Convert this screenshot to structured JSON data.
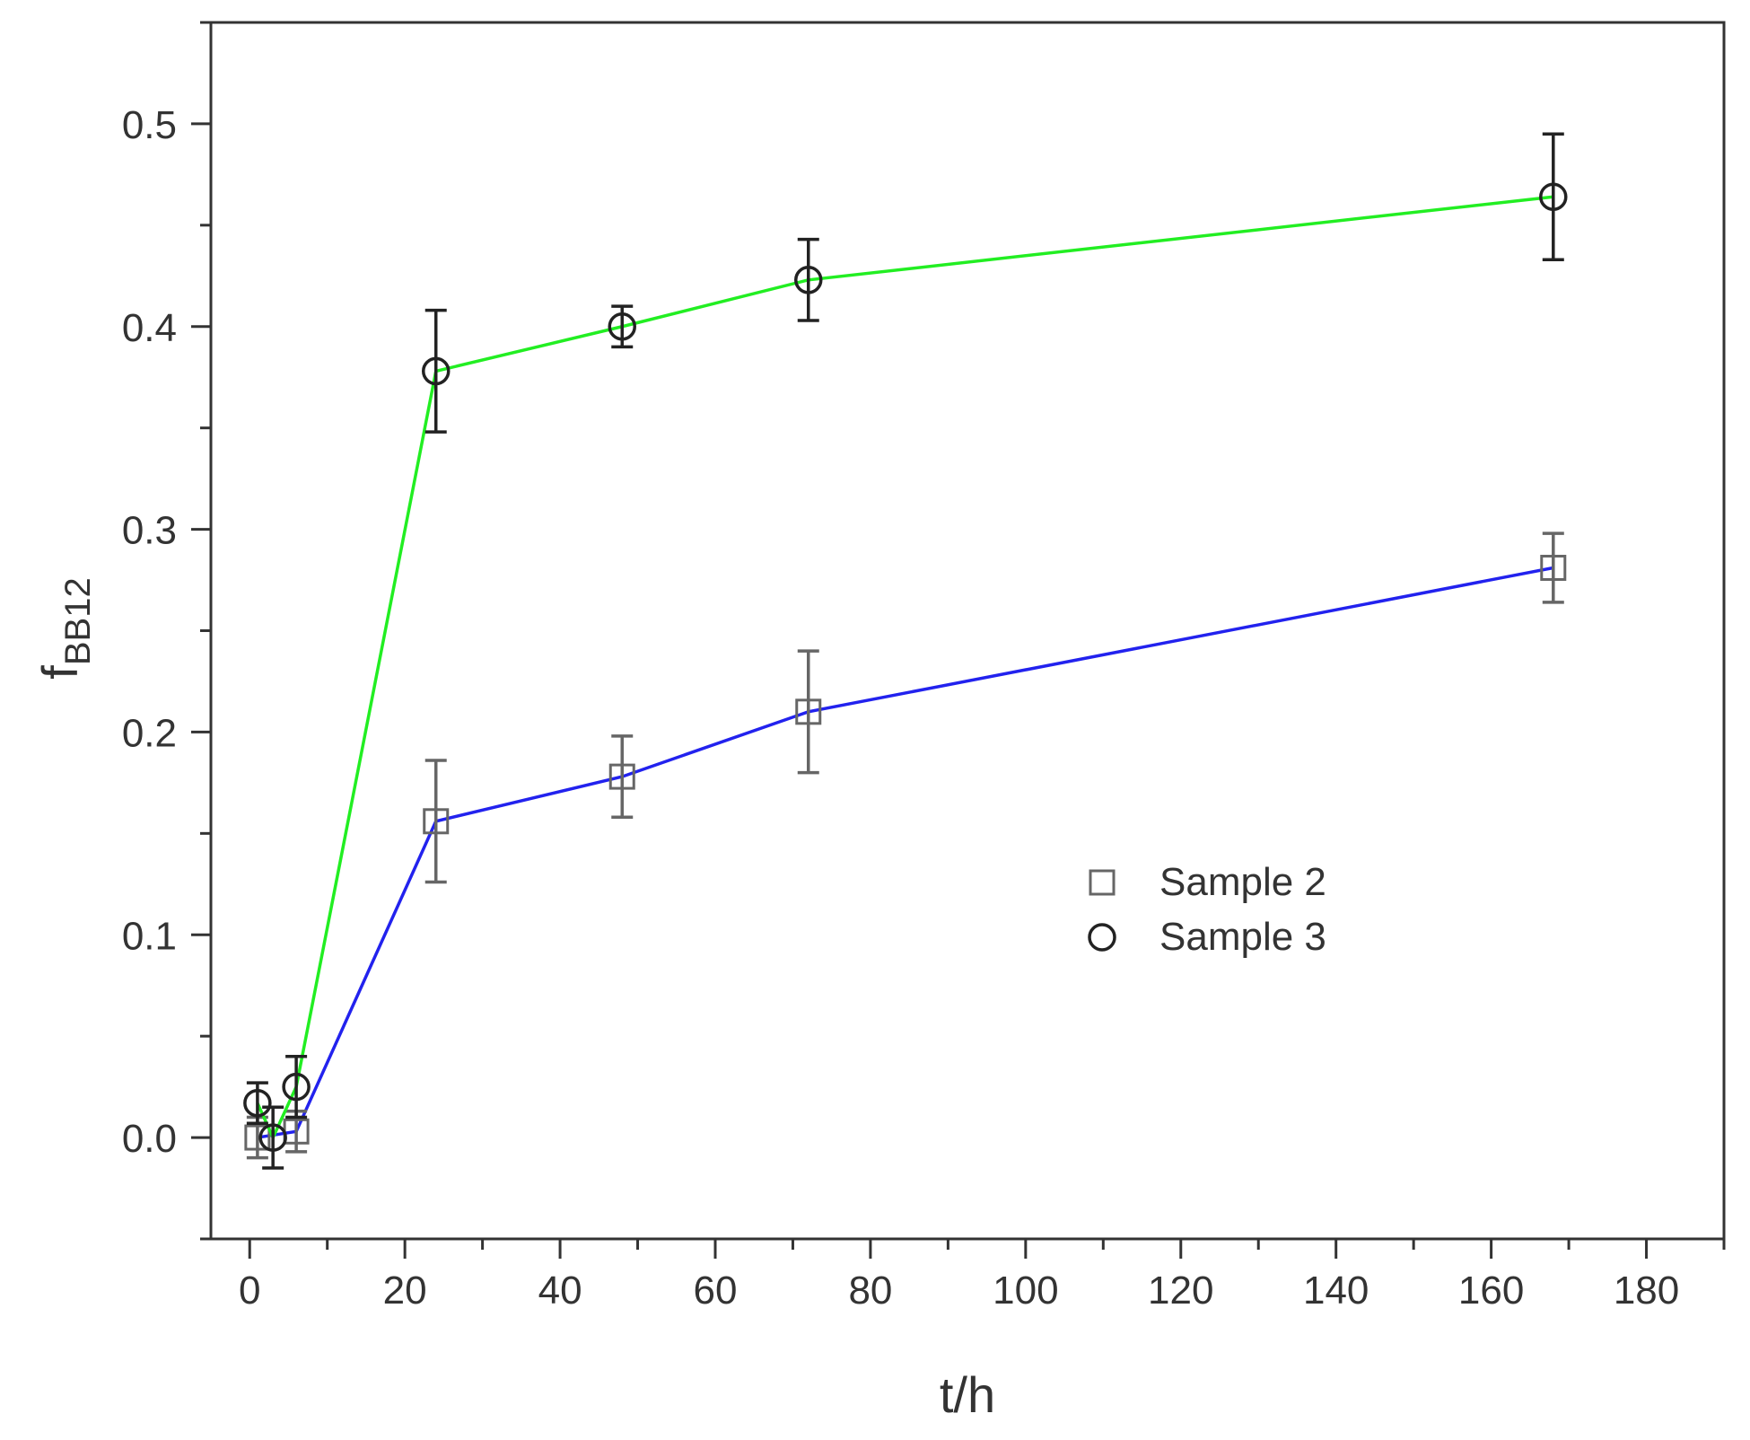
{
  "chart_data": {
    "type": "line",
    "title": "",
    "xlabel": "t/h",
    "ylabel": {
      "main": "f",
      "sub": "BB12"
    },
    "xlim": [
      -5,
      190
    ],
    "ylim": [
      -0.05,
      0.55
    ],
    "xticks": [
      0,
      20,
      40,
      60,
      80,
      100,
      120,
      140,
      160,
      180
    ],
    "xtick_labels": [
      "0",
      "20",
      "40",
      "60",
      "80",
      "100",
      "120",
      "140",
      "160",
      "180"
    ],
    "yticks": [
      0.0,
      0.1,
      0.2,
      0.3,
      0.4,
      0.5
    ],
    "ytick_labels": [
      "0.0",
      "0.1",
      "0.2",
      "0.3",
      "0.4",
      "0.5"
    ],
    "grid": false,
    "legend_position": "right-middle",
    "series": [
      {
        "name": "Sample 2",
        "marker": "square",
        "line_color": "#2222ee",
        "marker_color": "#666666",
        "x": [
          1,
          6,
          24,
          48,
          72,
          168
        ],
        "y": [
          0.0,
          0.003,
          0.156,
          0.178,
          0.21,
          0.281
        ],
        "err": [
          0.01,
          0.01,
          0.03,
          0.02,
          0.03,
          0.017
        ]
      },
      {
        "name": "Sample 3",
        "marker": "circle",
        "line_color": "#22ee22",
        "marker_color": "#222222",
        "x": [
          1,
          3,
          6,
          24,
          48,
          72,
          168
        ],
        "y": [
          0.017,
          0.0,
          0.025,
          0.378,
          0.4,
          0.423,
          0.464
        ],
        "err": [
          0.01,
          0.015,
          0.015,
          0.03,
          0.01,
          0.02,
          0.031
        ]
      }
    ]
  }
}
